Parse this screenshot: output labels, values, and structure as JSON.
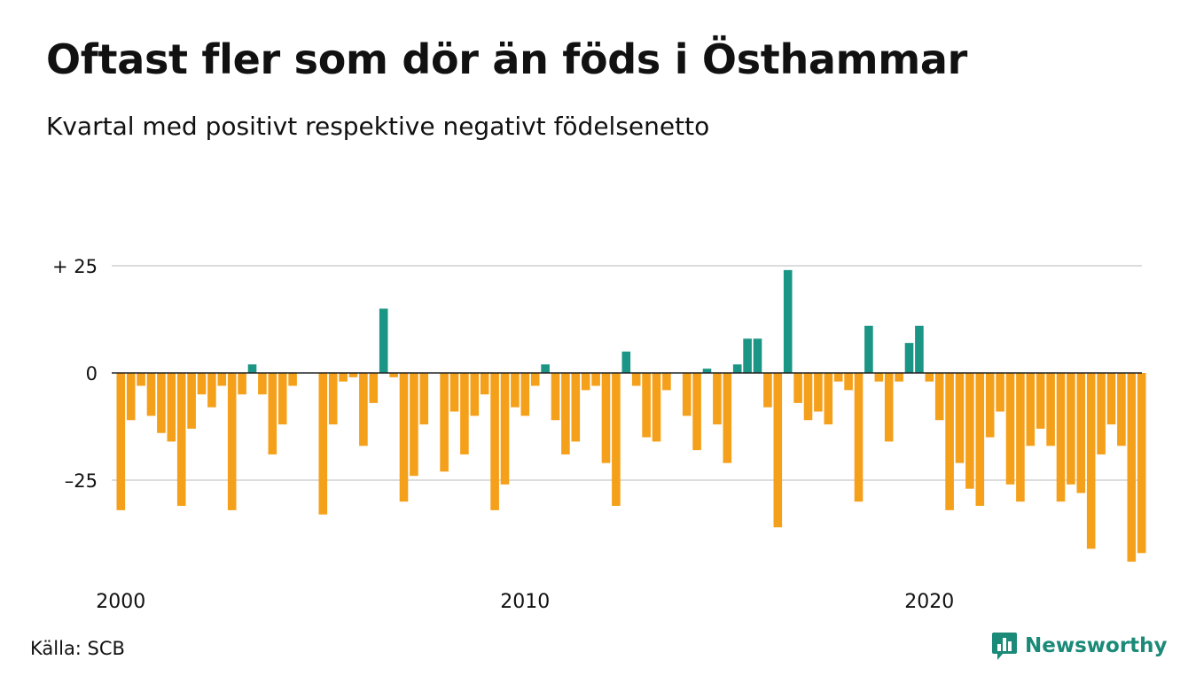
{
  "title": "Oftast fler som dör än föds i Östhammar",
  "subtitle": "Kvartal med positivt respektive negativt födelsenetto",
  "source": "Källa: SCB",
  "brand": {
    "name": "Newsworthy",
    "logo_icon": "bar-chart-logo-icon"
  },
  "colors": {
    "positive": "#1b9585",
    "negative": "#f5a01a",
    "grid": "#dcdcdc",
    "zero": "#222222",
    "brand": "#1b8a78"
  },
  "chart_data": {
    "type": "bar",
    "ylim": [
      -45,
      30
    ],
    "grid": true,
    "y_ticks": [
      {
        "value": 25,
        "label": "+ 25"
      },
      {
        "value": 0,
        "label": "0"
      },
      {
        "value": -25,
        "label": "–25"
      }
    ],
    "x_ticks": [
      {
        "year": 2000,
        "label": "2000"
      },
      {
        "year": 2010,
        "label": "2010"
      },
      {
        "year": 2020,
        "label": "2020"
      }
    ],
    "start": "2000 Q1",
    "frequency": "quarter",
    "values": [
      -32,
      -11,
      -3,
      -10,
      -14,
      -16,
      -31,
      -13,
      -5,
      -8,
      -3,
      -32,
      -5,
      2,
      -5,
      -19,
      -12,
      -3,
      0,
      0,
      -33,
      -12,
      -2,
      -1,
      -17,
      -7,
      15,
      -1,
      -30,
      -24,
      -12,
      0,
      -23,
      -9,
      -19,
      -10,
      -5,
      -32,
      -26,
      -8,
      -10,
      -3,
      2,
      -11,
      -19,
      -16,
      -4,
      -3,
      -21,
      -31,
      5,
      -3,
      -15,
      -16,
      -4,
      0,
      -10,
      -18,
      1,
      -12,
      -21,
      2,
      8,
      8,
      -8,
      -36,
      24,
      -7,
      -11,
      -9,
      -12,
      -2,
      -4,
      -30,
      11,
      -2,
      -16,
      -2,
      7,
      11,
      -2,
      -11,
      -32,
      -21,
      -27,
      -31,
      -15,
      -9,
      -26,
      -30,
      -17,
      -13,
      -17,
      -30,
      -26,
      -28,
      -41,
      -19,
      -12,
      -17,
      -44,
      -42
    ]
  }
}
